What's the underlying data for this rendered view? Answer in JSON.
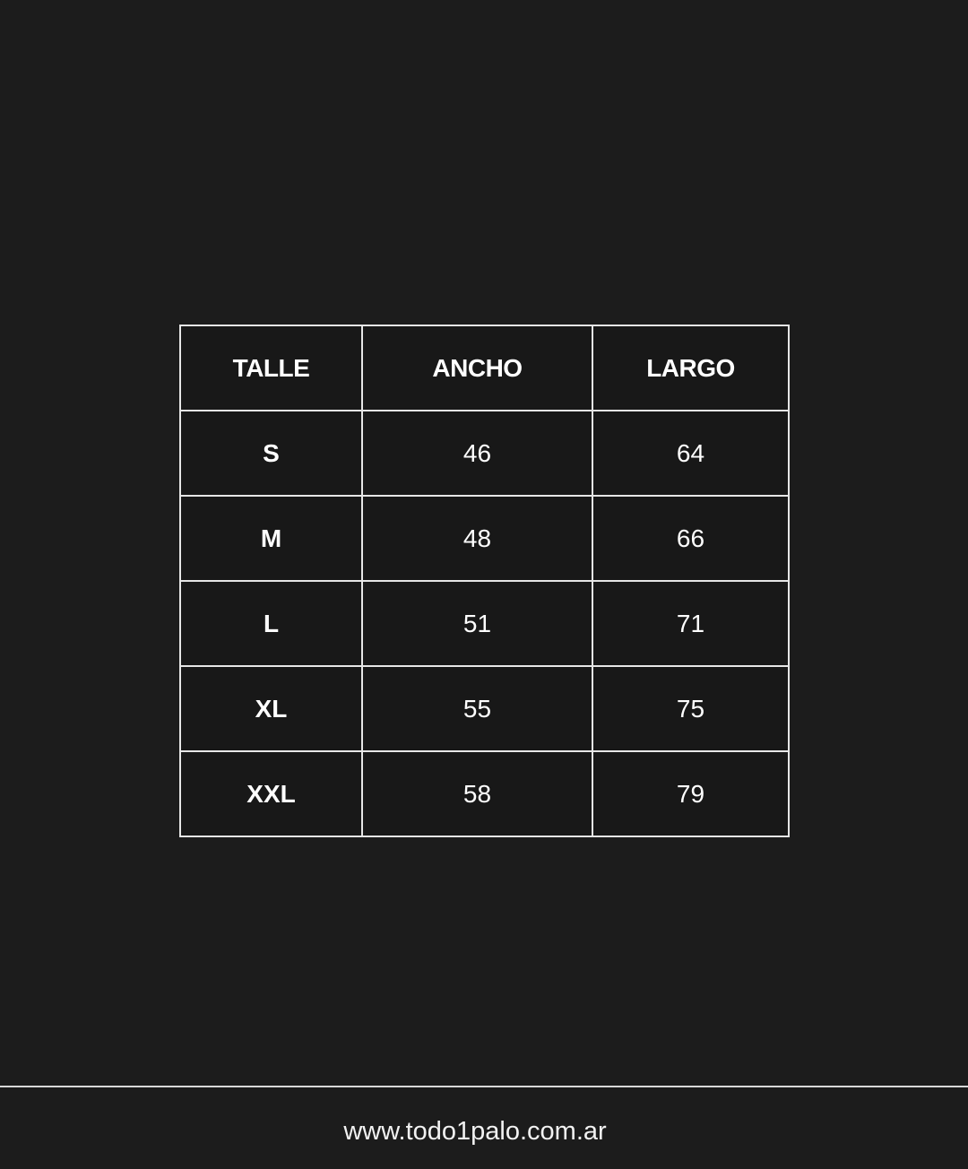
{
  "table": {
    "headers": [
      "TALLE",
      "ANCHO",
      "LARGO"
    ],
    "rows": [
      [
        "S",
        "46",
        "64"
      ],
      [
        "M",
        "48",
        "66"
      ],
      [
        "L",
        "51",
        "71"
      ],
      [
        "XL",
        "55",
        "75"
      ],
      [
        "XXL",
        "58",
        "79"
      ]
    ]
  },
  "footer": {
    "url": "www.todo1palo.com.ar"
  },
  "colors": {
    "background": "#1c1c1c",
    "lines": "#e6e6e6",
    "text": "#ffffff"
  }
}
